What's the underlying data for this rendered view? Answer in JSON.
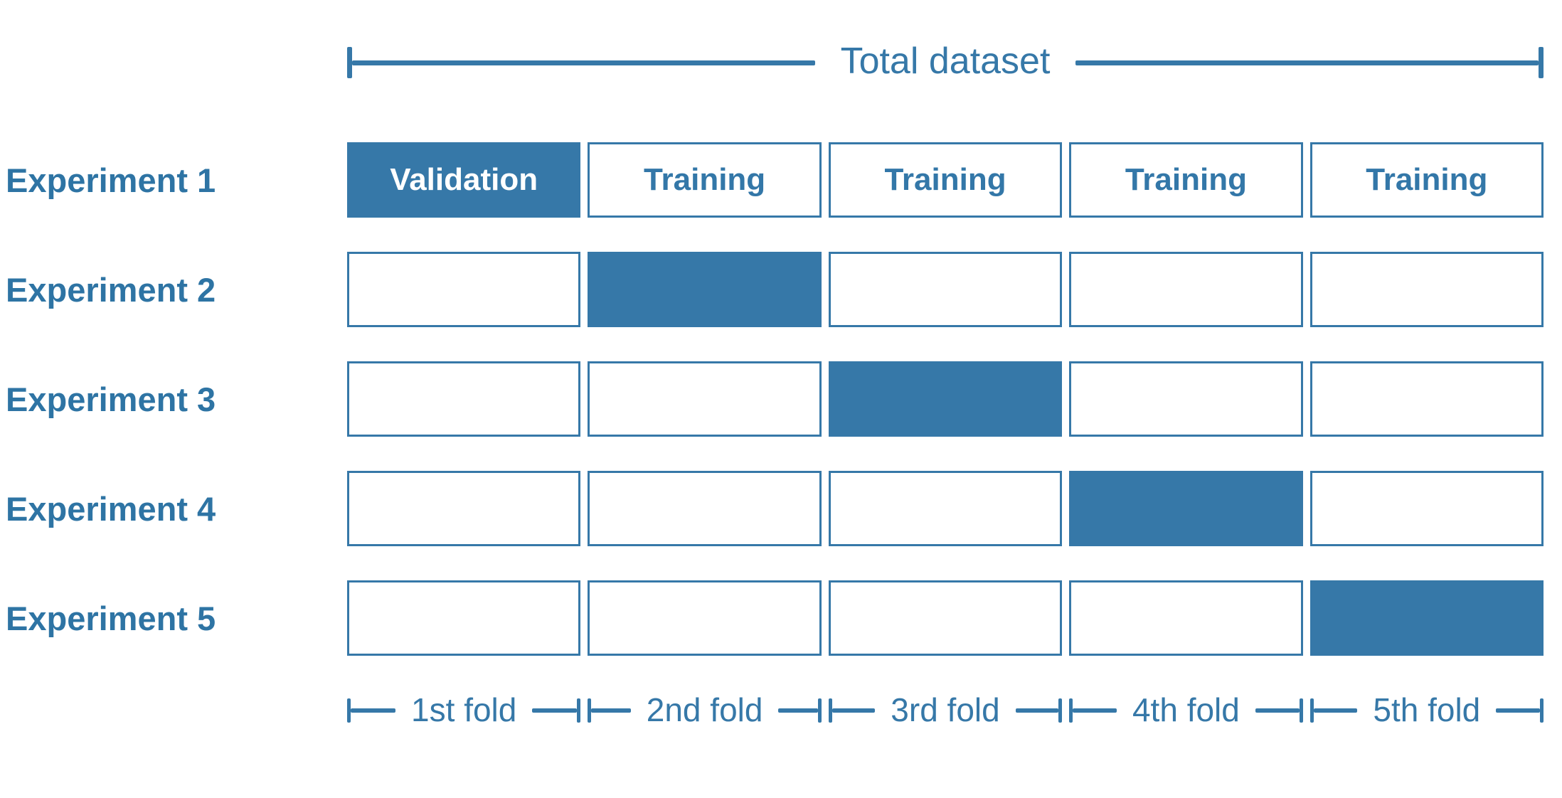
{
  "diagram": {
    "title": "Total dataset",
    "experiments": [
      {
        "label": "Experiment 1",
        "cells": [
          {
            "text": "Validation",
            "filled": true
          },
          {
            "text": "Training",
            "filled": false
          },
          {
            "text": "Training",
            "filled": false
          },
          {
            "text": "Training",
            "filled": false
          },
          {
            "text": "Training",
            "filled": false
          }
        ]
      },
      {
        "label": "Experiment 2",
        "cells": [
          {
            "text": "",
            "filled": false
          },
          {
            "text": "",
            "filled": true
          },
          {
            "text": "",
            "filled": false
          },
          {
            "text": "",
            "filled": false
          },
          {
            "text": "",
            "filled": false
          }
        ]
      },
      {
        "label": "Experiment 3",
        "cells": [
          {
            "text": "",
            "filled": false
          },
          {
            "text": "",
            "filled": false
          },
          {
            "text": "",
            "filled": true
          },
          {
            "text": "",
            "filled": false
          },
          {
            "text": "",
            "filled": false
          }
        ]
      },
      {
        "label": "Experiment 4",
        "cells": [
          {
            "text": "",
            "filled": false
          },
          {
            "text": "",
            "filled": false
          },
          {
            "text": "",
            "filled": false
          },
          {
            "text": "",
            "filled": true
          },
          {
            "text": "",
            "filled": false
          }
        ]
      },
      {
        "label": "Experiment 5",
        "cells": [
          {
            "text": "",
            "filled": false
          },
          {
            "text": "",
            "filled": false
          },
          {
            "text": "",
            "filled": false
          },
          {
            "text": "",
            "filled": false
          },
          {
            "text": "",
            "filled": true
          }
        ]
      }
    ],
    "fold_labels": [
      "1st fold",
      "2nd fold",
      "3rd fold",
      "4th fold",
      "5th fold"
    ],
    "colors": {
      "accent": "#3678A8",
      "label_text": "#2E74A4",
      "box_text": "#3377A8",
      "validation_text": "#FFFFFF"
    }
  }
}
